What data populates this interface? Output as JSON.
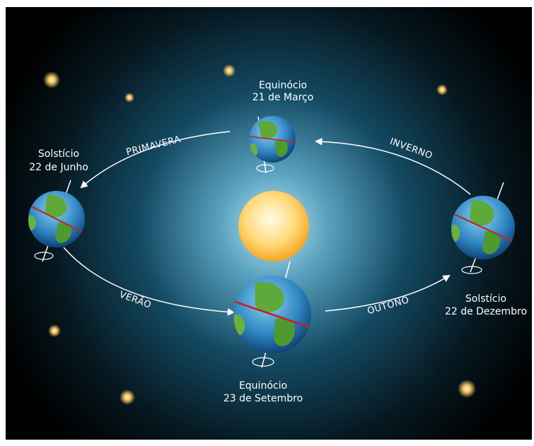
{
  "events": [
    {
      "name": "Equinócio",
      "date": "21 de Março"
    },
    {
      "name": "Solstício",
      "date": "22 de Junho"
    },
    {
      "name": "Equinócio",
      "date": "23 de Setembro"
    },
    {
      "name": "Solstício",
      "date": "22 de Dezembro"
    }
  ],
  "seasons": [
    "PRIMAVERA",
    "INVERNO",
    "VERÃO",
    "OUTONO"
  ]
}
